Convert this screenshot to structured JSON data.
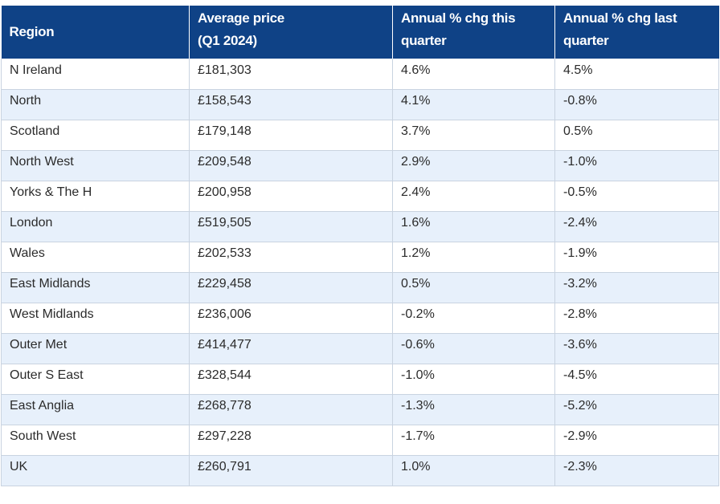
{
  "table": {
    "headers": [
      {
        "line1": "Region",
        "line2": ""
      },
      {
        "line1": "Average price",
        "line2": "(Q1 2024)"
      },
      {
        "line1": "Annual % chg this",
        "line2": "quarter"
      },
      {
        "line1": "Annual % chg last",
        "line2": "quarter"
      }
    ],
    "rows": [
      [
        "N Ireland",
        "£181,303",
        "4.6%",
        "4.5%"
      ],
      [
        "North",
        "£158,543",
        "4.1%",
        "-0.8%"
      ],
      [
        "Scotland",
        "£179,148",
        "3.7%",
        "0.5%"
      ],
      [
        "North West",
        "£209,548",
        "2.9%",
        "-1.0%"
      ],
      [
        "Yorks & The H",
        "£200,958",
        "2.4%",
        "-0.5%"
      ],
      [
        "London",
        "£519,505",
        "1.6%",
        "-2.4%"
      ],
      [
        "Wales",
        "£202,533",
        "1.2%",
        "-1.9%"
      ],
      [
        "East Midlands",
        "£229,458",
        "0.5%",
        "-3.2%"
      ],
      [
        "West Midlands",
        "£236,006",
        "-0.2%",
        "-2.8%"
      ],
      [
        "Outer Met",
        "£414,477",
        "-0.6%",
        "-3.6%"
      ],
      [
        "Outer S East",
        "£328,544",
        "-1.0%",
        "-4.5%"
      ],
      [
        "East Anglia",
        "£268,778",
        "-1.3%",
        "-5.2%"
      ],
      [
        "South West",
        "£297,228",
        "-1.7%",
        "-2.9%"
      ],
      [
        "UK",
        "£260,791",
        "1.0%",
        "-2.3%"
      ]
    ]
  },
  "colors": {
    "header_bg": "#0f4286",
    "row_alt_bg": "#e7f0fb"
  }
}
